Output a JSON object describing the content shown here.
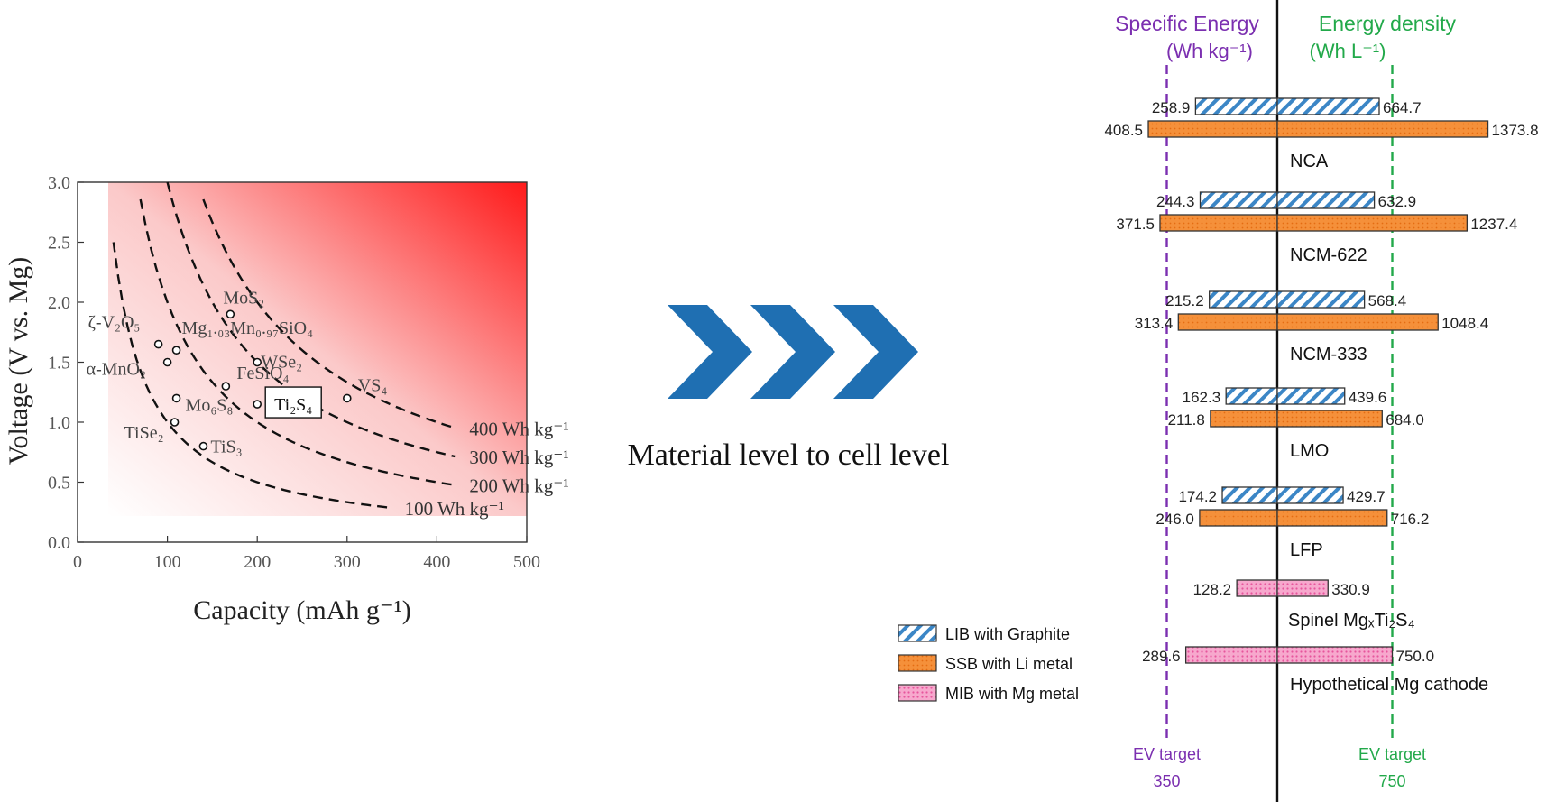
{
  "middle": {
    "caption": "Material level to cell level",
    "arrow_color": "#1f6fb2",
    "arrow_icon": "chevron-right-icon"
  },
  "chart_data": [
    {
      "type": "scatter",
      "xlabel": "Capacity (mAh g⁻¹)",
      "ylabel": "Voltage (V vs. Mg)",
      "xlim": [
        0,
        500
      ],
      "ylim": [
        0,
        3.0
      ],
      "xticks": [
        "0",
        "100",
        "200",
        "300",
        "400",
        "500"
      ],
      "yticks": [
        "0.0",
        "0.5",
        "1.0",
        "1.5",
        "2.0",
        "2.5",
        "3.0"
      ],
      "background": "white-to-red gradient toward high capacity / high voltage",
      "points": [
        {
          "label": "ζ-V₂O₅",
          "x": 90,
          "y": 1.65
        },
        {
          "label": "α-MnO₂",
          "x": 100,
          "y": 1.5
        },
        {
          "label": "Mg₁.₀₃Mn₀.₉₇SiO₄",
          "x": 110,
          "y": 1.6
        },
        {
          "label": "MoS₂",
          "x": 170,
          "y": 1.9
        },
        {
          "label": "WSe₂",
          "x": 200,
          "y": 1.5
        },
        {
          "label": "FeSiO₄",
          "x": 165,
          "y": 1.3
        },
        {
          "label": "Mo₆S₈",
          "x": 110,
          "y": 1.2
        },
        {
          "label": "TiSe₂",
          "x": 108,
          "y": 1.0
        },
        {
          "label": "TiS₃",
          "x": 140,
          "y": 0.8
        },
        {
          "label": "Ti₂S₄",
          "x": 200,
          "y": 1.15
        },
        {
          "label": "VS₄",
          "x": 300,
          "y": 1.2
        }
      ],
      "highlighted_point": "Ti₂S₄",
      "iso_energy_curves": [
        {
          "label": "100 Wh kg⁻¹",
          "energy": 100
        },
        {
          "label": "200 Wh kg⁻¹",
          "energy": 200
        },
        {
          "label": "300 Wh kg⁻¹",
          "energy": 300
        },
        {
          "label": "400 Wh kg⁻¹",
          "energy": 400
        }
      ]
    },
    {
      "type": "bar",
      "orientation": "horizontal diverging",
      "left_axis_title": [
        "Specific Energy",
        "(Wh kg⁻¹)"
      ],
      "right_axis_title": [
        "Energy density",
        "(Wh L⁻¹)"
      ],
      "categories": [
        "NCA",
        "NCM-622",
        "NCM-333",
        "LMO",
        "LFP",
        "Spinel MgₓTi₂S₄",
        "Hypothetical Mg cathode"
      ],
      "series": [
        {
          "name": "LIB with Graphite",
          "color": "#3b86c6",
          "specific_energy": [
            258.9,
            244.3,
            215.2,
            162.3,
            174.2
          ],
          "energy_density": [
            664.7,
            632.9,
            568.4,
            439.6,
            429.7
          ],
          "labels_left": [
            "258.9",
            "244.3",
            "215.2",
            "162.3",
            "174.2"
          ],
          "labels_right": [
            "664.7",
            "632.9",
            "568.4",
            "439.6",
            "429.7"
          ]
        },
        {
          "name": "SSB with Li metal",
          "color": "#f5903a",
          "specific_energy": [
            408.5,
            371.5,
            313.4,
            211.8,
            246.0
          ],
          "energy_density": [
            1373.8,
            1237.4,
            1048.4,
            684.0,
            716.2
          ],
          "labels_left": [
            "408.5",
            "371.5",
            "313.4",
            "211.8",
            "246.0"
          ],
          "labels_right": [
            "1373.8",
            "1237.4",
            "1048.4",
            "684.0",
            "716.2"
          ]
        },
        {
          "name": "MIB with Mg metal",
          "color": "#ef86b6",
          "specific_energy": [
            128.2,
            289.6
          ],
          "energy_density": [
            330.9,
            750.0
          ],
          "labels_left": [
            "128.2",
            "289.6"
          ],
          "labels_right": [
            "330.9",
            "750.0"
          ]
        }
      ],
      "targets": [
        {
          "label": "EV target",
          "value_label": "350",
          "value": 350,
          "side": "specific_energy",
          "color": "#7b2fb0"
        },
        {
          "label": "EV target",
          "value_label": "750",
          "value": 750,
          "side": "energy_density",
          "color": "#22a94a"
        }
      ],
      "legend_position": "bottom-left"
    }
  ]
}
